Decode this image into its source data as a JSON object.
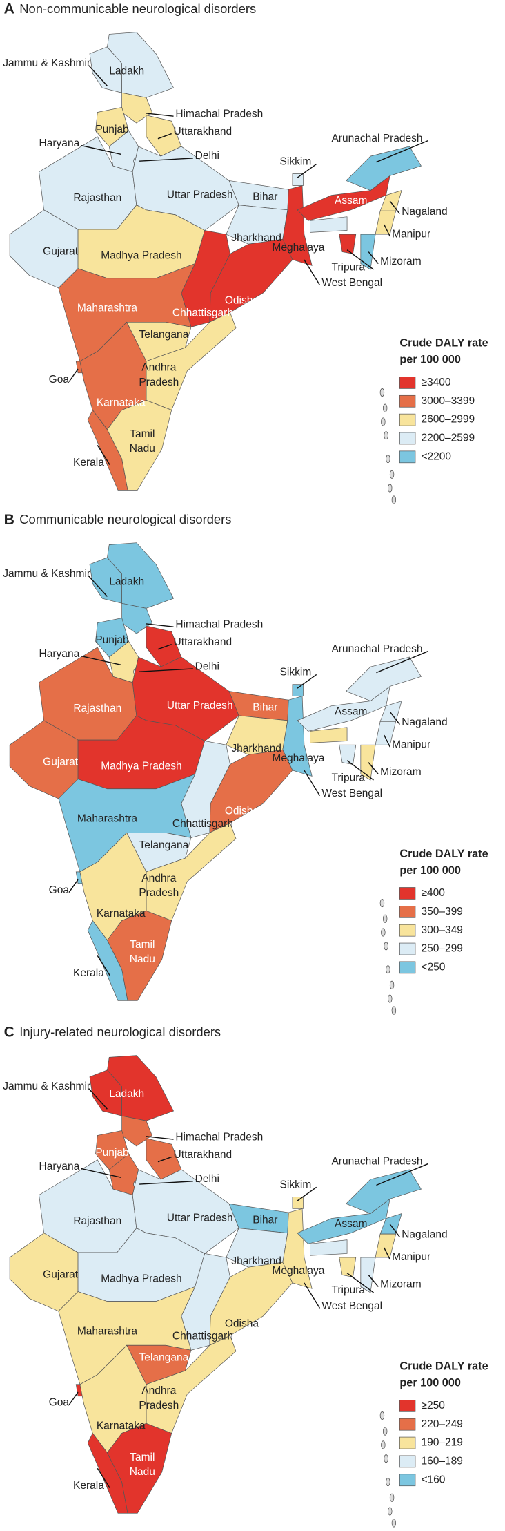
{
  "panels": [
    {
      "letter": "A",
      "title": "Non-communicable neurological disorders",
      "legend": {
        "title": [
          "Crude DALY rate",
          "per 100 000"
        ],
        "items": [
          {
            "label": "≥3400",
            "color": "#e2342c"
          },
          {
            "label": "3000–3399",
            "color": "#e56f48"
          },
          {
            "label": "2600–2999",
            "color": "#f8e49c"
          },
          {
            "label": "2200–2599",
            "color": "#dcecf5"
          },
          {
            "label": "<2200",
            "color": "#7cc6e0"
          }
        ]
      },
      "states": [
        {
          "name": "Jammu & Kashmir",
          "color": "#dcecf5"
        },
        {
          "name": "Ladakh",
          "color": "#dcecf5"
        },
        {
          "name": "Himachal Pradesh",
          "color": "#f8e49c"
        },
        {
          "name": "Punjab",
          "color": "#f8e49c"
        },
        {
          "name": "Uttarakhand",
          "color": "#f8e49c"
        },
        {
          "name": "Haryana",
          "color": "#dcecf5"
        },
        {
          "name": "Delhi",
          "color": "#dcecf5"
        },
        {
          "name": "Rajasthan",
          "color": "#dcecf5"
        },
        {
          "name": "Gujarat",
          "color": "#dcecf5"
        },
        {
          "name": "Uttar Pradesh",
          "color": "#dcecf5"
        },
        {
          "name": "Madhya Pradesh",
          "color": "#f8e49c"
        },
        {
          "name": "Bihar",
          "color": "#dcecf5"
        },
        {
          "name": "Jharkhand",
          "color": "#dcecf5"
        },
        {
          "name": "West Bengal",
          "color": "#e2342c"
        },
        {
          "name": "Sikkim",
          "color": "#dcecf5"
        },
        {
          "name": "Chhattisgarh",
          "color": "#e2342c"
        },
        {
          "name": "Odisha",
          "color": "#e2342c"
        },
        {
          "name": "Maharashtra",
          "color": "#e56f48"
        },
        {
          "name": "Telangana",
          "color": "#f8e49c"
        },
        {
          "name": "Andhra Pradesh",
          "color": "#f8e49c"
        },
        {
          "name": "Goa",
          "color": "#e56f48"
        },
        {
          "name": "Karnataka",
          "color": "#e56f48"
        },
        {
          "name": "Kerala",
          "color": "#e56f48"
        },
        {
          "name": "Tamil Nadu",
          "color": "#f8e49c"
        },
        {
          "name": "Assam",
          "color": "#e2342c"
        },
        {
          "name": "Arunachal Pradesh",
          "color": "#7cc6e0"
        },
        {
          "name": "Nagaland",
          "color": "#f8e49c"
        },
        {
          "name": "Manipur",
          "color": "#f8e49c"
        },
        {
          "name": "Mizoram",
          "color": "#7cc6e0"
        },
        {
          "name": "Tripura",
          "color": "#e2342c"
        },
        {
          "name": "Meghalaya",
          "color": "#dcecf5"
        }
      ]
    },
    {
      "letter": "B",
      "title": "Communicable neurological disorders",
      "legend": {
        "title": [
          "Crude DALY rate",
          "per 100 000"
        ],
        "items": [
          {
            "label": "≥400",
            "color": "#e2342c"
          },
          {
            "label": "350–399",
            "color": "#e56f48"
          },
          {
            "label": "300–349",
            "color": "#f8e49c"
          },
          {
            "label": "250–299",
            "color": "#dcecf5"
          },
          {
            "label": "<250",
            "color": "#7cc6e0"
          }
        ]
      },
      "states": [
        {
          "name": "Jammu & Kashmir",
          "color": "#7cc6e0"
        },
        {
          "name": "Ladakh",
          "color": "#7cc6e0"
        },
        {
          "name": "Himachal Pradesh",
          "color": "#7cc6e0"
        },
        {
          "name": "Punjab",
          "color": "#7cc6e0"
        },
        {
          "name": "Uttarakhand",
          "color": "#e2342c"
        },
        {
          "name": "Haryana",
          "color": "#f8e49c"
        },
        {
          "name": "Delhi",
          "color": "#dcecf5"
        },
        {
          "name": "Rajasthan",
          "color": "#e56f48"
        },
        {
          "name": "Gujarat",
          "color": "#e56f48"
        },
        {
          "name": "Uttar Pradesh",
          "color": "#e2342c"
        },
        {
          "name": "Madhya Pradesh",
          "color": "#e2342c"
        },
        {
          "name": "Bihar",
          "color": "#e56f48"
        },
        {
          "name": "Jharkhand",
          "color": "#f8e49c"
        },
        {
          "name": "West Bengal",
          "color": "#7cc6e0"
        },
        {
          "name": "Sikkim",
          "color": "#7cc6e0"
        },
        {
          "name": "Chhattisgarh",
          "color": "#dcecf5"
        },
        {
          "name": "Odisha",
          "color": "#e56f48"
        },
        {
          "name": "Maharashtra",
          "color": "#7cc6e0"
        },
        {
          "name": "Telangana",
          "color": "#dcecf5"
        },
        {
          "name": "Andhra Pradesh",
          "color": "#f8e49c"
        },
        {
          "name": "Goa",
          "color": "#7cc6e0"
        },
        {
          "name": "Karnataka",
          "color": "#f8e49c"
        },
        {
          "name": "Kerala",
          "color": "#7cc6e0"
        },
        {
          "name": "Tamil Nadu",
          "color": "#e56f48"
        },
        {
          "name": "Assam",
          "color": "#dcecf5"
        },
        {
          "name": "Arunachal Pradesh",
          "color": "#dcecf5"
        },
        {
          "name": "Nagaland",
          "color": "#dcecf5"
        },
        {
          "name": "Manipur",
          "color": "#dcecf5"
        },
        {
          "name": "Mizoram",
          "color": "#f8e49c"
        },
        {
          "name": "Tripura",
          "color": "#dcecf5"
        },
        {
          "name": "Meghalaya",
          "color": "#f8e49c"
        }
      ]
    },
    {
      "letter": "C",
      "title": "Injury-related neurological disorders",
      "legend": {
        "title": [
          "Crude DALY rate",
          "per 100 000"
        ],
        "items": [
          {
            "label": "≥250",
            "color": "#e2342c"
          },
          {
            "label": "220–249",
            "color": "#e56f48"
          },
          {
            "label": "190–219",
            "color": "#f8e49c"
          },
          {
            "label": "160–189",
            "color": "#dcecf5"
          },
          {
            "label": "<160",
            "color": "#7cc6e0"
          }
        ]
      },
      "states": [
        {
          "name": "Jammu & Kashmir",
          "color": "#e2342c"
        },
        {
          "name": "Ladakh",
          "color": "#e2342c"
        },
        {
          "name": "Himachal Pradesh",
          "color": "#e56f48"
        },
        {
          "name": "Punjab",
          "color": "#e56f48"
        },
        {
          "name": "Uttarakhand",
          "color": "#e56f48"
        },
        {
          "name": "Haryana",
          "color": "#e56f48"
        },
        {
          "name": "Delhi",
          "color": "#dcecf5"
        },
        {
          "name": "Rajasthan",
          "color": "#dcecf5"
        },
        {
          "name": "Gujarat",
          "color": "#f8e49c"
        },
        {
          "name": "Uttar Pradesh",
          "color": "#dcecf5"
        },
        {
          "name": "Madhya Pradesh",
          "color": "#dcecf5"
        },
        {
          "name": "Bihar",
          "color": "#7cc6e0"
        },
        {
          "name": "Jharkhand",
          "color": "#dcecf5"
        },
        {
          "name": "West Bengal",
          "color": "#f8e49c"
        },
        {
          "name": "Sikkim",
          "color": "#f8e49c"
        },
        {
          "name": "Chhattisgarh",
          "color": "#dcecf5"
        },
        {
          "name": "Odisha",
          "color": "#f8e49c"
        },
        {
          "name": "Maharashtra",
          "color": "#f8e49c"
        },
        {
          "name": "Telangana",
          "color": "#e56f48"
        },
        {
          "name": "Andhra Pradesh",
          "color": "#f8e49c"
        },
        {
          "name": "Goa",
          "color": "#e2342c"
        },
        {
          "name": "Karnataka",
          "color": "#f8e49c"
        },
        {
          "name": "Kerala",
          "color": "#e2342c"
        },
        {
          "name": "Tamil Nadu",
          "color": "#e2342c"
        },
        {
          "name": "Assam",
          "color": "#7cc6e0"
        },
        {
          "name": "Arunachal Pradesh",
          "color": "#7cc6e0"
        },
        {
          "name": "Nagaland",
          "color": "#7cc6e0"
        },
        {
          "name": "Manipur",
          "color": "#f8e49c"
        },
        {
          "name": "Mizoram",
          "color": "#dcecf5"
        },
        {
          "name": "Tripura",
          "color": "#f8e49c"
        },
        {
          "name": "Meghalaya",
          "color": "#dcecf5"
        }
      ]
    }
  ]
}
